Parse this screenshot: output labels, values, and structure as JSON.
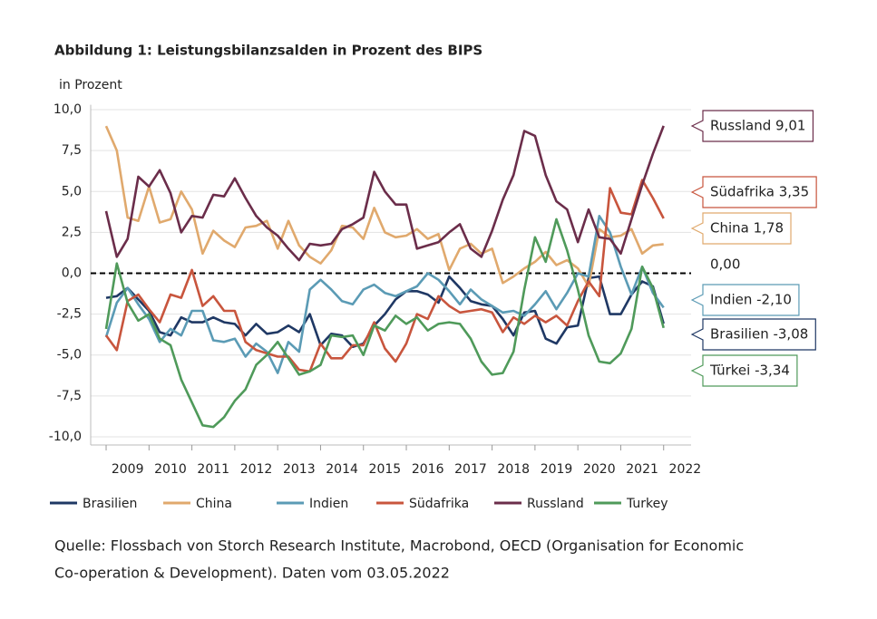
{
  "chart_data": {
    "type": "line",
    "title": "Abbildung 1: Leistungsbilanzsalden in Prozent des BIPS",
    "y_label": "in Prozent",
    "source": [
      "Quelle: Flossbach von Storch Research Institute, Macrobond, OECD (Organisation for Economic",
      "Co-operation & Development). Daten vom 03.05.2022"
    ],
    "x": [
      2009,
      2009.25,
      2009.5,
      2009.75,
      2010,
      2010.25,
      2010.5,
      2010.75,
      2011,
      2011.25,
      2011.5,
      2011.75,
      2012,
      2012.25,
      2012.5,
      2012.75,
      2013,
      2013.25,
      2013.5,
      2013.75,
      2014,
      2014.25,
      2014.5,
      2014.75,
      2015,
      2015.25,
      2015.5,
      2015.75,
      2016,
      2016.25,
      2016.5,
      2016.75,
      2017,
      2017.25,
      2017.5,
      2017.75,
      2018,
      2018.25,
      2018.5,
      2018.75,
      2019,
      2019.25,
      2019.5,
      2019.75,
      2020,
      2020.25,
      2020.5,
      2020.75,
      2021,
      2021.25,
      2021.5,
      2021.75,
      2022
    ],
    "xlim": [
      2008.64,
      2022.64
    ],
    "xticks": [
      2009,
      2010,
      2011,
      2012,
      2013,
      2014,
      2015,
      2016,
      2017,
      2018,
      2019,
      2020,
      2021,
      2022
    ],
    "ylim": [
      -10.5,
      10.3
    ],
    "yticks": [
      {
        "value": 10,
        "label": "10,0"
      },
      {
        "value": 7.5,
        "label": "7,5"
      },
      {
        "value": 5,
        "label": "5,0"
      },
      {
        "value": 2.5,
        "label": "2,5"
      },
      {
        "value": 0,
        "label": "0,0"
      },
      {
        "value": -2.5,
        "label": "-2,5"
      },
      {
        "value": -5,
        "label": "-5,0"
      },
      {
        "value": -7.5,
        "label": "-7,5"
      },
      {
        "value": -10,
        "label": "-10,0"
      }
    ],
    "grid": true,
    "zero_line": true,
    "series": [
      {
        "name": "Brasilien",
        "color": "#1f3864",
        "values": [
          -1.5,
          -1.4,
          -0.9,
          -1.6,
          -2.3,
          -3.6,
          -3.8,
          -2.7,
          -3.0,
          -3.0,
          -2.7,
          -3.0,
          -3.1,
          -3.8,
          -3.1,
          -3.7,
          -3.6,
          -3.2,
          -3.6,
          -2.5,
          -4.4,
          -3.7,
          -3.8,
          -4.5,
          -4.3,
          -3.2,
          -2.5,
          -1.6,
          -1.1,
          -1.1,
          -1.3,
          -1.8,
          -0.2,
          -0.9,
          -1.7,
          -1.9,
          -2.0,
          -2.8,
          -3.8,
          -2.4,
          -2.3,
          -4.0,
          -4.3,
          -3.3,
          -3.2,
          -0.3,
          -0.2,
          -2.5,
          -2.5,
          -1.3,
          -0.5,
          -0.8,
          -3.08
        ]
      },
      {
        "name": "China",
        "color": "#e0a96d",
        "values": [
          9.0,
          7.5,
          3.4,
          3.2,
          5.3,
          3.1,
          3.3,
          5.0,
          3.9,
          1.2,
          2.6,
          2.0,
          1.6,
          2.8,
          2.9,
          3.2,
          1.5,
          3.2,
          1.7,
          1.0,
          0.6,
          1.4,
          2.9,
          2.8,
          2.1,
          4.0,
          2.5,
          2.2,
          2.3,
          2.7,
          2.1,
          2.4,
          0.2,
          1.5,
          1.8,
          1.2,
          1.5,
          -0.6,
          -0.2,
          0.3,
          0.7,
          1.3,
          0.5,
          0.8,
          0.3,
          -0.8,
          2.7,
          2.2,
          2.3,
          2.7,
          1.2,
          1.7,
          1.78
        ]
      },
      {
        "name": "Indien",
        "color": "#5b9bb5",
        "values": [
          -3.9,
          -1.8,
          -0.9,
          -1.9,
          -2.8,
          -4.2,
          -3.4,
          -3.8,
          -2.3,
          -2.3,
          -4.1,
          -4.2,
          -4.0,
          -5.1,
          -4.3,
          -4.8,
          -6.1,
          -4.2,
          -4.8,
          -1.0,
          -0.4,
          -1.0,
          -1.7,
          -1.9,
          -1.0,
          -0.7,
          -1.2,
          -1.4,
          -1.1,
          -0.8,
          0.0,
          -0.4,
          -1.1,
          -1.9,
          -1.0,
          -1.6,
          -2.0,
          -2.4,
          -2.3,
          -2.6,
          -1.9,
          -1.1,
          -2.2,
          -1.2,
          0.0,
          -0.2,
          3.5,
          2.5,
          0.4,
          -1.3,
          0.4,
          -1.2,
          -2.1
        ]
      },
      {
        "name": "Südafrika",
        "color": "#c8553d",
        "values": [
          -3.8,
          -4.7,
          -1.7,
          -1.3,
          -2.2,
          -3.0,
          -1.3,
          -1.5,
          0.2,
          -2.0,
          -1.4,
          -2.3,
          -2.3,
          -4.2,
          -4.7,
          -4.9,
          -5.1,
          -5.1,
          -5.9,
          -6.0,
          -4.3,
          -5.2,
          -5.2,
          -4.4,
          -4.4,
          -3.0,
          -4.6,
          -5.4,
          -4.3,
          -2.5,
          -2.8,
          -1.4,
          -2.0,
          -2.4,
          -2.3,
          -2.2,
          -2.4,
          -3.6,
          -2.7,
          -3.1,
          -2.6,
          -3.0,
          -2.6,
          -3.2,
          -1.7,
          -0.5,
          -1.4,
          5.2,
          3.7,
          3.6,
          5.7,
          4.6,
          3.35
        ]
      },
      {
        "name": "Russland",
        "color": "#6b2d4a",
        "values": [
          3.8,
          1.0,
          2.1,
          5.9,
          5.3,
          6.3,
          4.9,
          2.5,
          3.5,
          3.4,
          4.8,
          4.7,
          5.8,
          4.6,
          3.5,
          2.8,
          2.3,
          1.5,
          0.8,
          1.8,
          1.7,
          1.8,
          2.7,
          3.0,
          3.4,
          6.2,
          5.0,
          4.2,
          4.2,
          1.5,
          1.7,
          1.9,
          2.5,
          3.0,
          1.5,
          1.0,
          2.6,
          4.5,
          6.0,
          8.7,
          8.4,
          6.0,
          4.4,
          3.9,
          1.9,
          3.9,
          2.2,
          2.1,
          1.2,
          3.3,
          5.4,
          7.3,
          9.01
        ]
      },
      {
        "name": "Turkey",
        "color": "#4f9a5a",
        "values": [
          -3.4,
          0.6,
          -1.8,
          -2.9,
          -2.5,
          -4.0,
          -4.4,
          -6.5,
          -7.9,
          -9.3,
          -9.4,
          -8.8,
          -7.8,
          -7.1,
          -5.6,
          -5.0,
          -4.2,
          -5.2,
          -6.2,
          -6.0,
          -5.6,
          -3.8,
          -3.9,
          -3.8,
          -5.0,
          -3.2,
          -3.5,
          -2.6,
          -3.1,
          -2.7,
          -3.5,
          -3.1,
          -3.0,
          -3.1,
          -4.0,
          -5.4,
          -6.2,
          -6.1,
          -4.8,
          -1.0,
          2.2,
          0.7,
          3.3,
          1.4,
          -1.0,
          -3.8,
          -5.4,
          -5.5,
          -4.9,
          -3.4,
          0.4,
          -0.9,
          -3.34
        ]
      }
    ],
    "annotations": [
      {
        "text": "Russland 9,01",
        "color": "#6b2d4a"
      },
      {
        "text": "Südafrika 3,35",
        "color": "#c8553d"
      },
      {
        "text": "China 1,78",
        "color": "#e0a96d"
      },
      {
        "text": "0,00",
        "color": "#666666"
      },
      {
        "text": "Indien -2,10",
        "color": "#5b9bb5"
      },
      {
        "text": "Brasilien -3,08",
        "color": "#1f3864"
      },
      {
        "text": "Türkei -3,34",
        "color": "#4f9a5a"
      }
    ]
  }
}
